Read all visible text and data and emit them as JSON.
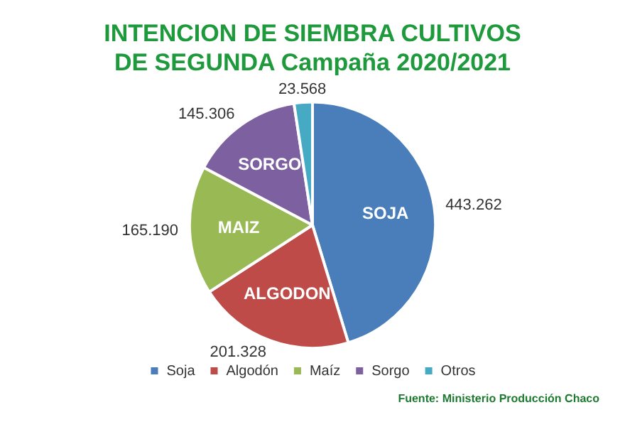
{
  "chart_data": {
    "type": "pie",
    "title": "INTENCION DE SIEMBRA CULTIVOS",
    "subtitle": "DE SEGUNDA Campaña 2020/2021",
    "categories": [
      "Soja",
      "Algodón",
      "Maíz",
      "Sorgo",
      "Otros"
    ],
    "values": [
      443262,
      201328,
      165190,
      145306,
      23568
    ],
    "value_labels": [
      "443.262",
      "201.328",
      "165.190",
      "145.306",
      "23.568"
    ],
    "colors": [
      "#4a7ebb",
      "#be4b48",
      "#98b954",
      "#7d60a0",
      "#46aac5"
    ],
    "legend": "bottom",
    "annotations": [
      {
        "text": "SOJA",
        "x": "Soja"
      },
      {
        "text": "ALGODON",
        "x": "Algodón"
      },
      {
        "text": "MAIZ",
        "x": "Maíz"
      },
      {
        "text": "SORGO",
        "x": "Sorgo"
      },
      "Fuente: Ministerio Producción Chaco"
    ]
  }
}
